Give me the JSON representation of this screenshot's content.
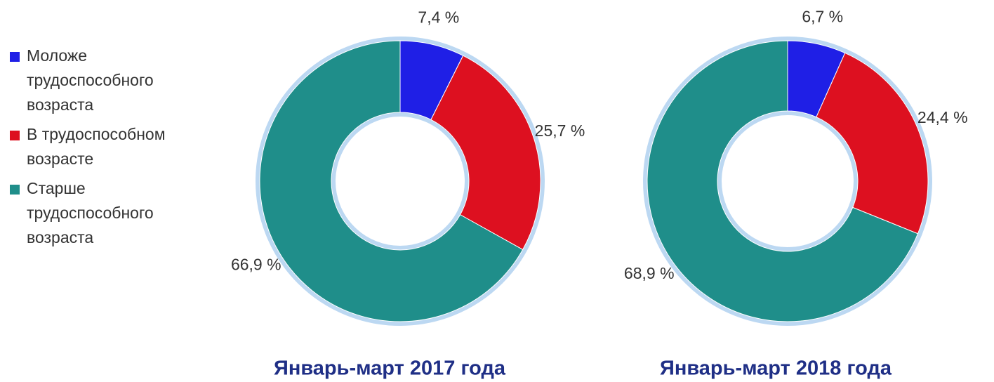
{
  "legend": {
    "items": [
      {
        "name": "Моложе трудоспособного возраста",
        "color": "#1f1fe6"
      },
      {
        "name": "В трудоспособном возрасте",
        "color": "#dd1020"
      },
      {
        "name": "Старше трудоспособного возраста",
        "color": "#1f8e8a"
      }
    ]
  },
  "chart_data": [
    {
      "type": "pie",
      "title": "Январь-март 2017 года",
      "values": [
        7.4,
        25.7,
        66.9
      ],
      "value_labels": [
        "7,4 %",
        "25,7 %",
        "66,9 %"
      ]
    },
    {
      "type": "pie",
      "title": "Январь-март 2018 года",
      "values": [
        6.7,
        24.4,
        68.9
      ],
      "value_labels": [
        "6,7 %",
        "24,4 %",
        "68,9 %"
      ]
    }
  ]
}
